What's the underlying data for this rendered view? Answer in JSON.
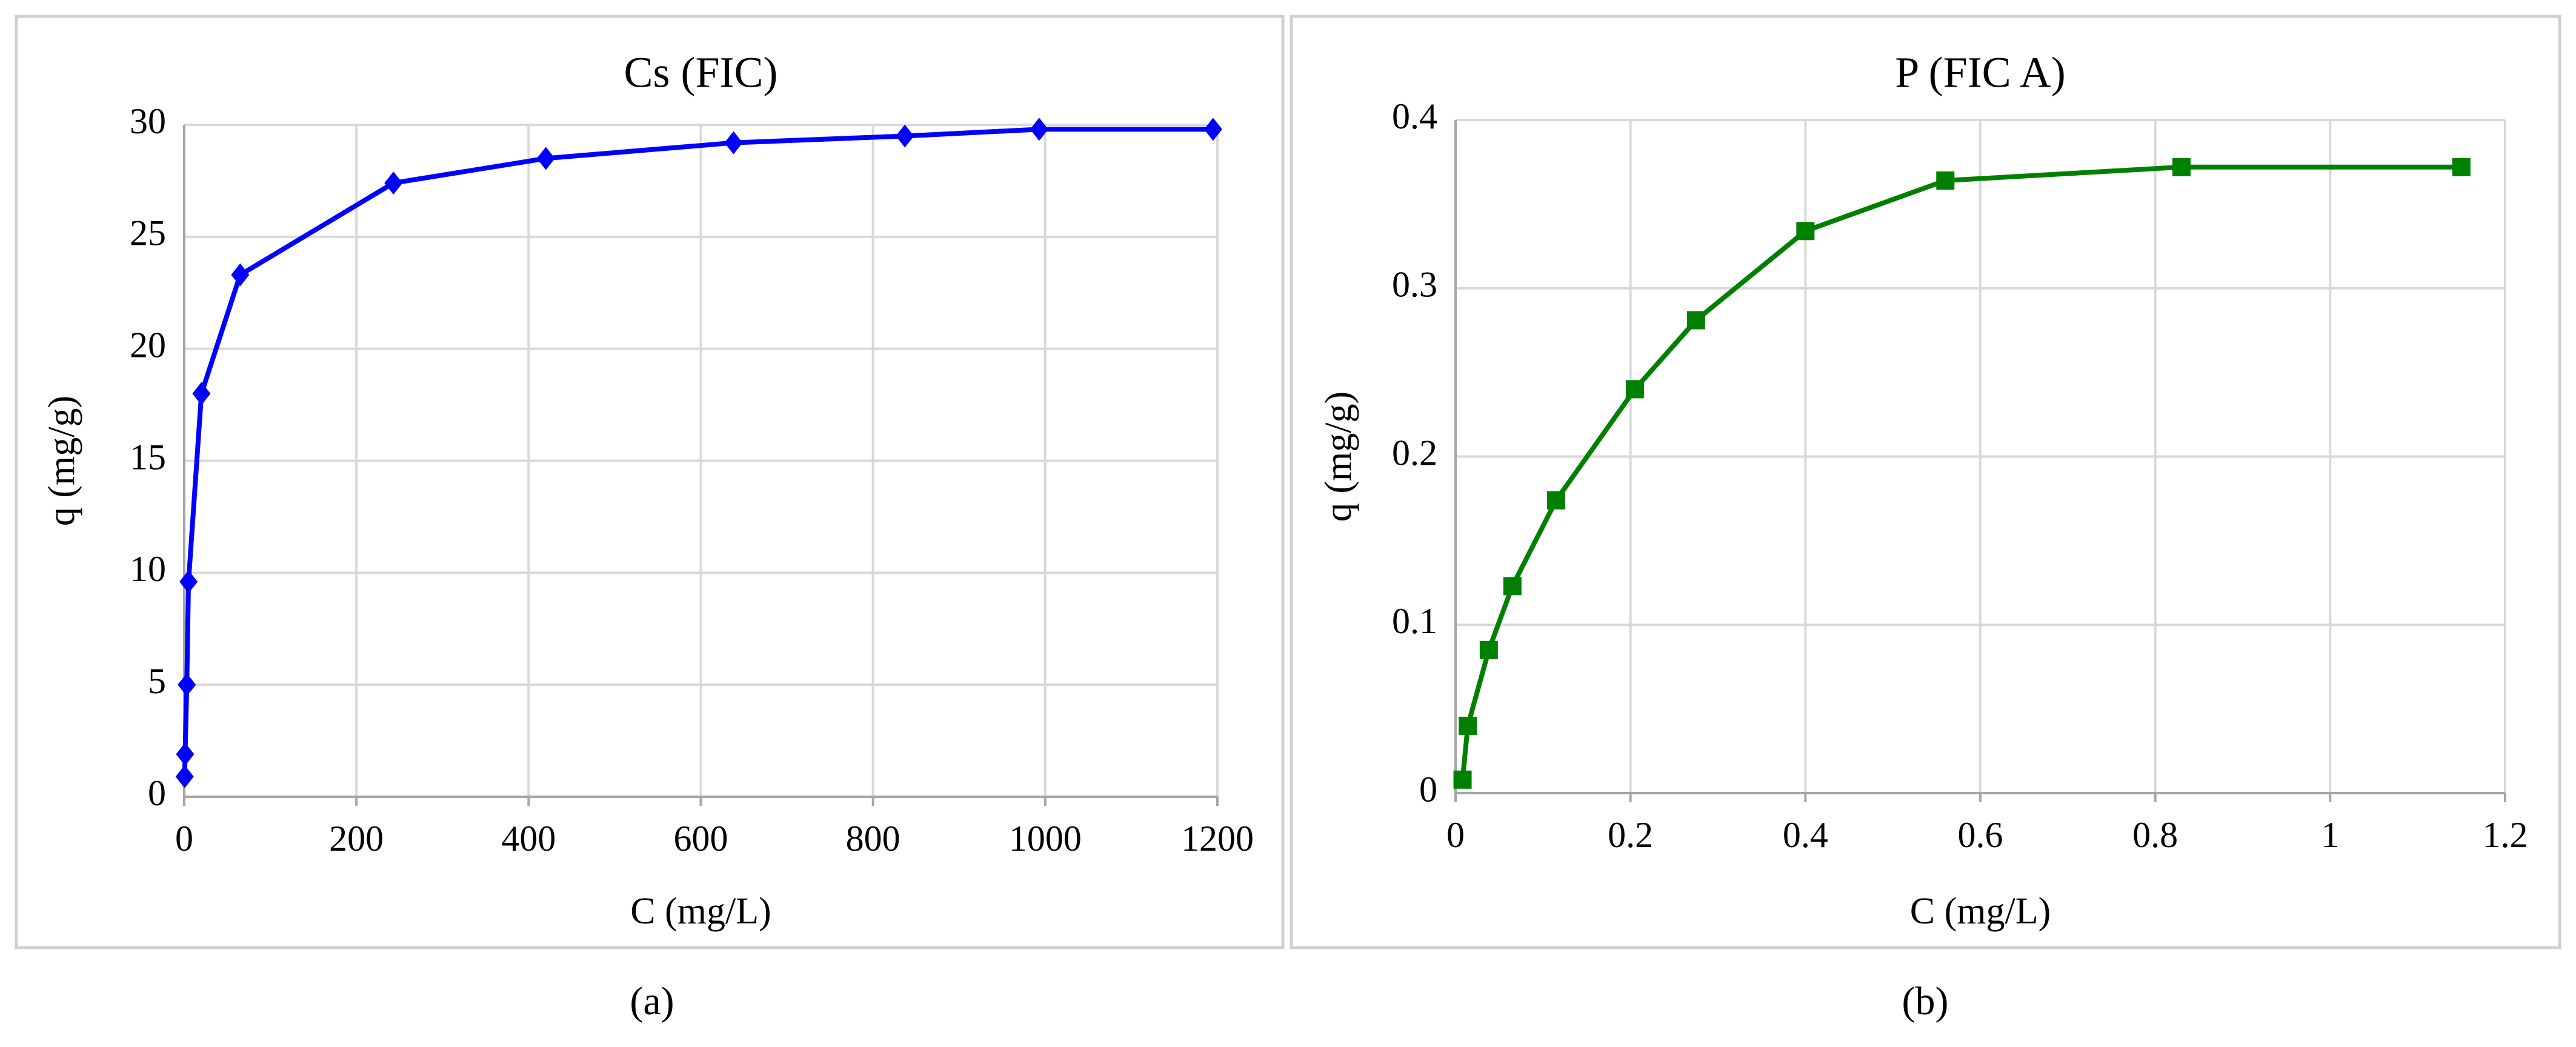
{
  "chart_data": [
    {
      "type": "line",
      "title": "Cs (FIC)",
      "caption": "(a)",
      "x_label": "C (mg/L)",
      "y_label": "q (mg/g)",
      "x": [
        0.5,
        1,
        3,
        5,
        20,
        65,
        243,
        420,
        638,
        837,
        993,
        1195
      ],
      "series": [
        {
          "name": "Cs",
          "color": "#0000ff",
          "marker": "diamond",
          "values": [
            0.9,
            1.9,
            5,
            9.6,
            18,
            23.3,
            27.4,
            28.5,
            29.2,
            29.5,
            29.8,
            29.8
          ]
        }
      ],
      "xlim": [
        0,
        1200
      ],
      "xticks": [
        0,
        200,
        400,
        600,
        800,
        1000,
        1200
      ],
      "ylim": [
        0,
        30
      ],
      "yticks": [
        0,
        5,
        10,
        15,
        20,
        25,
        30
      ],
      "grid": true
    },
    {
      "type": "line",
      "title": "P (FIC A)",
      "caption": "(b)",
      "x_label": "C (mg/L)",
      "y_label": "q (mg/g)",
      "x": [
        0.008,
        0.014,
        0.038,
        0.065,
        0.115,
        0.205,
        0.275,
        0.4,
        0.56,
        0.83,
        1.15
      ],
      "series": [
        {
          "name": "P",
          "color": "#008000",
          "marker": "square",
          "values": [
            0.008,
            0.04,
            0.085,
            0.123,
            0.174,
            0.24,
            0.281,
            0.334,
            0.364,
            0.372,
            0.372
          ]
        }
      ],
      "xlim": [
        0,
        1.2
      ],
      "xticks": [
        0,
        0.2,
        0.4,
        0.6,
        0.8,
        1,
        1.2
      ],
      "ylim": [
        0,
        0.4
      ],
      "yticks": [
        0,
        0.1,
        0.2,
        0.3,
        0.4
      ],
      "grid": true
    }
  ]
}
